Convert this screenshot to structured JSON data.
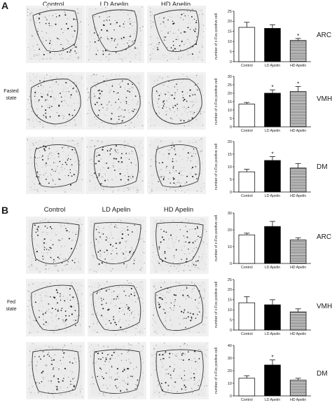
{
  "panels": [
    {
      "letter": "A",
      "columns": [
        "Control",
        "LD Apelin",
        "HD Apelin"
      ],
      "state_label_line1": "Fasted",
      "state_label_line2": "state"
    },
    {
      "letter": "B",
      "columns": [
        "Control",
        "LD Apelin",
        "HD Apelin"
      ],
      "state_label_line1": "Fed",
      "state_label_line2": "state"
    }
  ],
  "colors": {
    "control": "#ffffff",
    "ld": "#000000",
    "hd_stripe": "#555555",
    "axis": "#111111"
  },
  "chart_data": [
    {
      "type": "bar",
      "panel": "A",
      "region": "ARC",
      "ylabel": "number of c-Fos positive cell",
      "categories": [
        "Control",
        "LD Apelin",
        "HD Apelin"
      ],
      "values": [
        17,
        16.5,
        10.5
      ],
      "errors": [
        2.5,
        1.8,
        1.0
      ],
      "significant": [
        false,
        false,
        true
      ],
      "ylim": [
        0,
        25
      ],
      "yticks": [
        0,
        5,
        10,
        15,
        20,
        25
      ]
    },
    {
      "type": "bar",
      "panel": "A",
      "region": "VMH",
      "ylabel": "number of c-Fos positive cell",
      "categories": [
        "Control",
        "LD Apelin",
        "HD Apelin"
      ],
      "values": [
        13.5,
        20,
        21
      ],
      "errors": [
        1.0,
        2.0,
        3.0
      ],
      "significant": [
        false,
        true,
        true
      ],
      "ylim": [
        0,
        30
      ],
      "yticks": [
        0,
        5,
        10,
        15,
        20,
        25,
        30
      ]
    },
    {
      "type": "bar",
      "panel": "A",
      "region": "DM",
      "ylabel": "number of c-Fos positive cell",
      "categories": [
        "Control",
        "LD Apelin",
        "HD Apelin"
      ],
      "values": [
        8,
        12.5,
        9.5
      ],
      "errors": [
        1.0,
        1.5,
        1.8
      ],
      "significant": [
        false,
        true,
        false
      ],
      "ylim": [
        0,
        20
      ],
      "yticks": [
        0,
        5,
        10,
        15,
        20
      ]
    },
    {
      "type": "bar",
      "panel": "B",
      "region": "ARC",
      "ylabel": "number of c-Fos positive cell",
      "categories": [
        "Control",
        "LD Apelin",
        "HD Apelin"
      ],
      "values": [
        17,
        22,
        14
      ],
      "errors": [
        1.0,
        3.0,
        1.2
      ],
      "significant": [
        false,
        false,
        false
      ],
      "ylim": [
        0,
        30
      ],
      "yticks": [
        0,
        10,
        20,
        30
      ]
    },
    {
      "type": "bar",
      "panel": "B",
      "region": "VMH",
      "ylabel": "number of c-Fos positive cell",
      "categories": [
        "Control",
        "LD Apelin",
        "HD Apelin"
      ],
      "values": [
        13.5,
        12.5,
        9
      ],
      "errors": [
        3.0,
        2.5,
        1.5
      ],
      "significant": [
        false,
        false,
        false
      ],
      "ylim": [
        0,
        25
      ],
      "yticks": [
        0,
        5,
        10,
        15,
        20,
        25
      ]
    },
    {
      "type": "bar",
      "panel": "B",
      "region": "DM",
      "ylabel": "number of c-Fos positive cell",
      "categories": [
        "Control",
        "LD Apelin",
        "HD Apelin"
      ],
      "values": [
        14,
        24.5,
        12.5
      ],
      "errors": [
        2.0,
        4.0,
        1.5
      ],
      "significant": [
        false,
        true,
        false
      ],
      "ylim": [
        0,
        40
      ],
      "yticks": [
        0,
        10,
        20,
        30,
        40
      ]
    }
  ]
}
